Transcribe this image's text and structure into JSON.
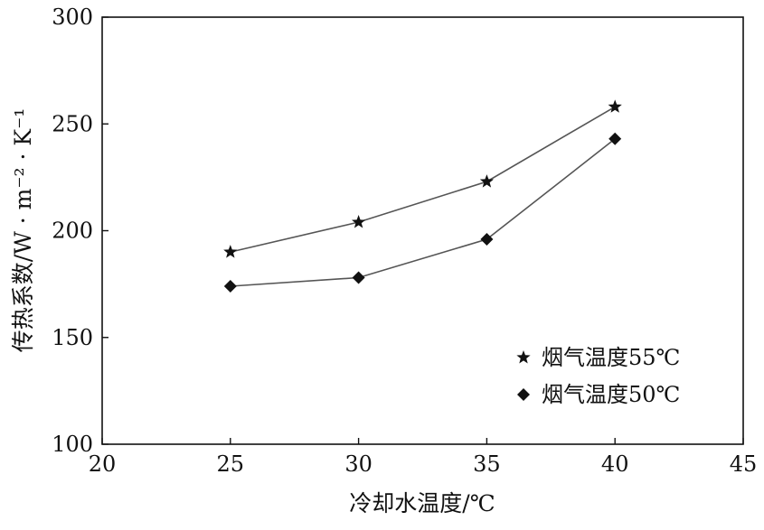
{
  "chart_data": {
    "type": "line",
    "title": "",
    "xlabel": "冷却水温度/℃",
    "ylabel": "传热系数/W · m⁻² · K⁻¹",
    "xlim": [
      20,
      45
    ],
    "ylim": [
      100,
      300
    ],
    "xticks": [
      20,
      25,
      30,
      35,
      40,
      45
    ],
    "yticks": [
      100,
      150,
      200,
      250,
      300
    ],
    "grid": false,
    "legend_position": "bottom-right",
    "x": [
      25,
      30,
      35,
      40
    ],
    "series": [
      {
        "name": "烟气温度55℃",
        "marker": "star",
        "color": "#111111",
        "values": [
          190,
          204,
          223,
          258
        ]
      },
      {
        "name": "烟气温度50℃",
        "marker": "diamond",
        "color": "#111111",
        "values": [
          174,
          178,
          196,
          243
        ]
      }
    ],
    "line_color": "#555555"
  }
}
